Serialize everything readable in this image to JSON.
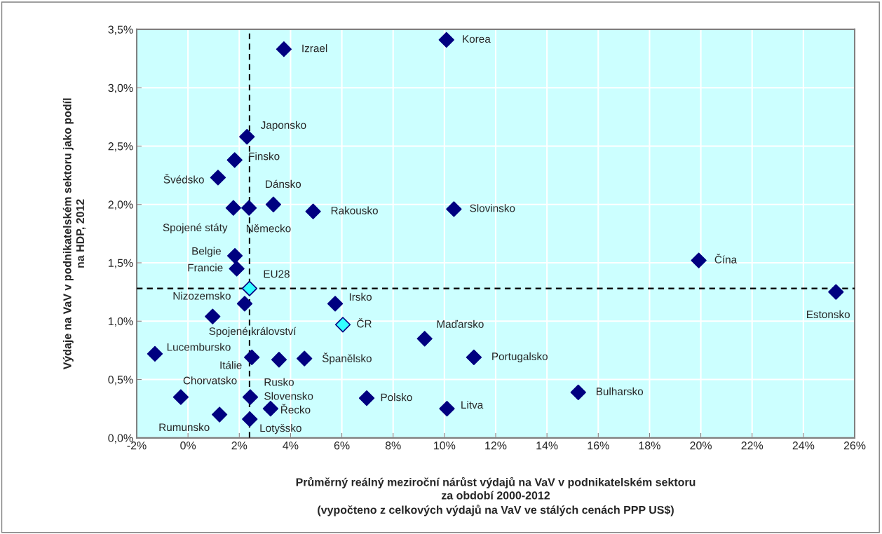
{
  "chart_data": {
    "type": "scatter",
    "xlabel": "Průměrný reálný meziroční nárůst výdajů na VaV v podnikatelském sektoru\nza období 2000-2012\n(vypočteno z celkových výdajů na VaV ve stálých cenách PPP US$)",
    "ylabel": "Výdaje na VaV v podnikatelském sektoru jako podíl\nna HDP, 2012",
    "series": [
      {
        "color": "#000080",
        "x": [
          10.08,
          3.74,
          2.3,
          1.82,
          1.17,
          3.33,
          1.77,
          2.38,
          4.88,
          10.37,
          19.92,
          1.83,
          1.9,
          2.21,
          5.74,
          25.27,
          0.96,
          9.23,
          -1.29,
          2.49,
          3.55,
          4.54,
          11.15,
          15.22,
          -0.28,
          1.23,
          2.43,
          3.22,
          6.97,
          10.1,
          2.41
        ],
        "values": [
          3.41,
          3.33,
          2.58,
          2.38,
          2.23,
          2.0,
          1.97,
          1.97,
          1.94,
          1.96,
          1.52,
          1.56,
          1.45,
          1.15,
          1.15,
          1.25,
          1.04,
          0.85,
          0.72,
          0.69,
          0.67,
          0.68,
          0.69,
          0.39,
          0.35,
          0.2,
          0.35,
          0.25,
          0.34,
          0.25,
          0.16
        ]
      },
      {
        "color": "#33ffff",
        "x": [
          2.4,
          6.04
        ],
        "values": [
          1.28,
          0.97
        ]
      }
    ],
    "annotations": [
      {
        "text": "Korea",
        "x": 10.08,
        "y": 3.41
      },
      {
        "text": "Izrael",
        "x": 3.74,
        "y": 3.33
      },
      {
        "text": "Japonsko",
        "x": 2.3,
        "y": 2.58
      },
      {
        "text": "Finsko",
        "x": 1.82,
        "y": 2.38
      },
      {
        "text": "Švédsko",
        "x": 1.17,
        "y": 2.23
      },
      {
        "text": "Dánsko",
        "x": 3.33,
        "y": 2.0
      },
      {
        "text": "Spojené státy",
        "x": 1.77,
        "y": 1.97
      },
      {
        "text": "Německo",
        "x": 2.38,
        "y": 1.97
      },
      {
        "text": "Rakousko",
        "x": 4.88,
        "y": 1.94
      },
      {
        "text": "Slovinsko",
        "x": 10.37,
        "y": 1.96
      },
      {
        "text": "Čína",
        "x": 19.92,
        "y": 1.52
      },
      {
        "text": "Belgie",
        "x": 1.83,
        "y": 1.56
      },
      {
        "text": "Francie",
        "x": 1.9,
        "y": 1.45
      },
      {
        "text": "EU28",
        "x": 2.4,
        "y": 1.28
      },
      {
        "text": "Nizozemsko",
        "x": 2.21,
        "y": 1.15
      },
      {
        "text": "Irsko",
        "x": 5.74,
        "y": 1.15
      },
      {
        "text": "Estonsko",
        "x": 25.27,
        "y": 1.25
      },
      {
        "text": "Spojené království",
        "x": 0.96,
        "y": 1.04
      },
      {
        "text": "ČR",
        "x": 6.04,
        "y": 0.97
      },
      {
        "text": "Maďarsko",
        "x": 9.23,
        "y": 0.85
      },
      {
        "text": "Lucembursko",
        "x": -1.29,
        "y": 0.72
      },
      {
        "text": "Itálie",
        "x": 2.49,
        "y": 0.69
      },
      {
        "text": "Rusko",
        "x": 3.55,
        "y": 0.67
      },
      {
        "text": "Španělsko",
        "x": 4.54,
        "y": 0.68
      },
      {
        "text": "Portugalsko",
        "x": 11.15,
        "y": 0.69
      },
      {
        "text": "Bulharsko",
        "x": 15.22,
        "y": 0.39
      },
      {
        "text": "Chorvatsko",
        "x": -0.28,
        "y": 0.35
      },
      {
        "text": "Rumunsko",
        "x": 1.23,
        "y": 0.2
      },
      {
        "text": "Slovensko",
        "x": 2.43,
        "y": 0.35
      },
      {
        "text": "Řecko",
        "x": 3.22,
        "y": 0.25
      },
      {
        "text": "Polsko",
        "x": 6.97,
        "y": 0.34
      },
      {
        "text": "Litva",
        "x": 10.1,
        "y": 0.25
      },
      {
        "text": "Lotyšsko",
        "x": 2.41,
        "y": 0.16
      }
    ],
    "ref_lines": [
      {
        "axis": "x",
        "value": 2.4,
        "color": "#000000",
        "line_style": "dashed"
      },
      {
        "axis": "y",
        "value": 1.28,
        "color": "#000000",
        "line_style": "dashed"
      }
    ],
    "xlim": [
      -2,
      26
    ],
    "xticks": [
      {
        "value": -2,
        "label": "-2%"
      },
      {
        "value": 0,
        "label": "0%"
      },
      {
        "value": 2,
        "label": "2%"
      },
      {
        "value": 4,
        "label": "4%"
      },
      {
        "value": 6,
        "label": "6%"
      },
      {
        "value": 8,
        "label": "8%"
      },
      {
        "value": 10,
        "label": "10%"
      },
      {
        "value": 12,
        "label": "12%"
      },
      {
        "value": 14,
        "label": "14%"
      },
      {
        "value": 16,
        "label": "16%"
      },
      {
        "value": 18,
        "label": "18%"
      },
      {
        "value": 20,
        "label": "20%"
      },
      {
        "value": 22,
        "label": "22%"
      },
      {
        "value": 24,
        "label": "24%"
      },
      {
        "value": 26,
        "label": "26%"
      }
    ],
    "ylim": [
      0,
      3.5
    ],
    "yticks": [
      {
        "value": 0,
        "label": "0,0%"
      },
      {
        "value": 0.5,
        "label": "0,5%"
      },
      {
        "value": 1.0,
        "label": "1,0%"
      },
      {
        "value": 1.5,
        "label": "1,5%"
      },
      {
        "value": 2.0,
        "label": "2,0%"
      },
      {
        "value": 2.5,
        "label": "2,5%"
      },
      {
        "value": 3.0,
        "label": "3,0%"
      },
      {
        "value": 3.5,
        "label": "3,5%"
      }
    ],
    "grid": true,
    "marker": "diamond"
  }
}
